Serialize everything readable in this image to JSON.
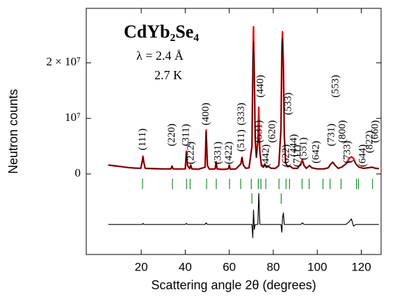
{
  "chart_data": {
    "type": "line",
    "title": "CdYb₂Se₄",
    "subtitle": "λ = 2.4 Å",
    "temperature": "2.7 K",
    "xlabel": "Scattering angle 2θ (degrees)",
    "ylabel": "Neutron counts",
    "xlim": [
      -5,
      129
    ],
    "xticks": [
      20,
      40,
      60,
      80,
      100,
      120
    ],
    "ylim": [
      -14500000,
      29800000
    ],
    "yticks": [
      0,
      {
        "value": 10000000,
        "label": "10⁷"
      },
      {
        "value": 20000000,
        "label": "2 × 10⁷"
      }
    ],
    "x": [
      5,
      8,
      11,
      14,
      17,
      19.8,
      20.4,
      20.8,
      21.2,
      21.8,
      25,
      30,
      33.5,
      34,
      34.5,
      37,
      40,
      40.5,
      41,
      42,
      42.5,
      43,
      46,
      49,
      49.5,
      50.1,
      51,
      53.6,
      54,
      54.5,
      57,
      59.6,
      60,
      60.5,
      63,
      65.3,
      65.8,
      66.4,
      67.5,
      69,
      70.3,
      70.7,
      71,
      71.4,
      71.8,
      72.3,
      73,
      73.4,
      73.9,
      74.6,
      75.5,
      76.2,
      76.8,
      78,
      79,
      81,
      82.5,
      83.5,
      83.9,
      84.2,
      84.6,
      85,
      85.6,
      86.5,
      87.5,
      89,
      91,
      92.5,
      93.2,
      94,
      95,
      96.5,
      97.5,
      100,
      103,
      105,
      106,
      107,
      108,
      109.5,
      111,
      113,
      114.5,
      115.5,
      116.5,
      117.5,
      119,
      121,
      123,
      125,
      126.5,
      128
    ],
    "series": [
      {
        "color": "#e8161b",
        "values": [
          1600000.0,
          1450000.0,
          1300000.0,
          1150000.0,
          1050000.0,
          1000000.0,
          2200000.0,
          3200000.0,
          2000000.0,
          1000000.0,
          950000.0,
          900000.0,
          900000.0,
          1400000.0,
          900000.0,
          880000.0,
          900000.0,
          4100000.0,
          1500000.0,
          950000.0,
          1600000.0,
          900000.0,
          850000.0,
          1200000.0,
          7900000.0,
          1500000.0,
          850000.0,
          900000.0,
          2200000.0,
          900000.0,
          820000.0,
          900000.0,
          1600000.0,
          850000.0,
          900000.0,
          1800000.0,
          3000000.0,
          1600000.0,
          1000000.0,
          1100000.0,
          5000000.0,
          18000000.0,
          26500000.0,
          18000000.0,
          6000000.0,
          3000000.0,
          6000000.0,
          12000000.0,
          4000000.0,
          1500000.0,
          1200000.0,
          1800000.0,
          1200000.0,
          1300000.0,
          1000000.0,
          1000000.0,
          1500000.0,
          8000000.0,
          22000000.0,
          25600000.0,
          20000000.0,
          7000000.0,
          2000000.0,
          1300000.0,
          1400000.0,
          1000000.0,
          1000000.0,
          1800000.0,
          2600000.0,
          1500000.0,
          1000000.0,
          1500000.0,
          1100000.0,
          900000.0,
          900000.0,
          1100000.0,
          1700000.0,
          2100000.0,
          1600000.0,
          1000000.0,
          1200000.0,
          1800000.0,
          2800000.0,
          3100000.0,
          2800000.0,
          1800000.0,
          1200000.0,
          1000000.0,
          1100000.0,
          1200000.0,
          1000000.0,
          950000.0
        ]
      },
      {
        "color": "#000000",
        "values": [
          1600000.0,
          1450000.0,
          1300000.0,
          1150000.0,
          1050000.0,
          1000000.0,
          2200000.0,
          3000000.0,
          2000000.0,
          1000000.0,
          950000.0,
          900000.0,
          900000.0,
          1400000.0,
          900000.0,
          880000.0,
          900000.0,
          3900000.0,
          1500000.0,
          950000.0,
          1600000.0,
          900000.0,
          850000.0,
          1200000.0,
          7600000.0,
          1500000.0,
          850000.0,
          900000.0,
          2200000.0,
          900000.0,
          820000.0,
          900000.0,
          1600000.0,
          850000.0,
          900000.0,
          1800000.0,
          3000000.0,
          1600000.0,
          1000000.0,
          1100000.0,
          5000000.0,
          20400000.0,
          23900000.0,
          18900000.0,
          6000000.0,
          3000000.0,
          6000000.0,
          6400000.0,
          4000000.0,
          1500000.0,
          1200000.0,
          1800000.0,
          1200000.0,
          1300000.0,
          1000000.0,
          1000000.0,
          1500000.0,
          8000000.0,
          23400000.0,
          24500000.0,
          17900000.0,
          7000000.0,
          2000000.0,
          1300000.0,
          1400000.0,
          1000000.0,
          1000000.0,
          1800000.0,
          2300000.0,
          1500000.0,
          1000000.0,
          1500000.0,
          1100000.0,
          900000.0,
          900000.0,
          1100000.0,
          1700000.0,
          2100000.0,
          1600000.0,
          1000000.0,
          1200000.0,
          1800000.0,
          2300000.0,
          2100000.0,
          2500000.0,
          1800000.0,
          1200000.0,
          1000000.0,
          1100000.0,
          1200000.0,
          1000000.0,
          950000.0
        ]
      },
      {
        "color": "#000000",
        "values": [
          -9100000.0,
          -9100000.0,
          -9100000.0,
          -9100000.0,
          -9100000.0,
          -9100000.0,
          -9100000.0,
          -8900000.0,
          -9100000.0,
          -9100000.0,
          -9100000.0,
          -9100000.0,
          -9100000.0,
          -9100000.0,
          -9100000.0,
          -9100000.0,
          -9100000.0,
          -8900000.0,
          -9100000.0,
          -9100000.0,
          -9100000.0,
          -9100000.0,
          -9100000.0,
          -9100000.0,
          -8800000.0,
          -9100000.0,
          -9100000.0,
          -9100000.0,
          -9100000.0,
          -9100000.0,
          -9100000.0,
          -9100000.0,
          -9100000.0,
          -9100000.0,
          -9100000.0,
          -9100000.0,
          -9100000.0,
          -9100000.0,
          -9100000.0,
          -9100000.0,
          -9100000.0,
          -11500000.0,
          -6500000.0,
          -10000000.0,
          -9100000.0,
          -9100000.0,
          -9100000.0,
          -3500000.0,
          -9100000.0,
          -9100000.0,
          -9100000.0,
          -9100000.0,
          -9100000.0,
          -9100000.0,
          -9100000.0,
          -9100000.0,
          -9100000.0,
          -9100000.0,
          -10500000.0,
          -8000000.0,
          -7000000.0,
          -9100000.0,
          -9100000.0,
          -9100000.0,
          -9100000.0,
          -9100000.0,
          -9100000.0,
          -9100000.0,
          -8800000.0,
          -9100000.0,
          -9100000.0,
          -9100000.0,
          -9100000.0,
          -9100000.0,
          -9100000.0,
          -9100000.0,
          -9100000.0,
          -9100000.0,
          -9100000.0,
          -9100000.0,
          -9100000.0,
          -9100000.0,
          -8600000.0,
          -8100000.0,
          -9400000.0,
          -9100000.0,
          -9100000.0,
          -9100000.0,
          -9100000.0,
          -9100000.0,
          -9100000.0,
          -9100000.0
        ]
      }
    ],
    "reflections": [
      {
        "color": "#1a8a2a",
        "positions": [
          20.6,
          34.2,
          40.6,
          42.2,
          49.7,
          54.1,
          60.1,
          65.2,
          70,
          73.2,
          74.4,
          76.6,
          82.6,
          85.8,
          87.4,
          93.1,
          96.3,
          102.6,
          105.8,
          110.8,
          117.8,
          118.7,
          125.1
        ]
      },
      {
        "color": "#1a8a2a",
        "positions": [
          70.3,
          83.6
        ]
      }
    ],
    "annotations": [
      {
        "text": "(111)",
        "x": 20.8,
        "y": 4250000
      },
      {
        "text": "(220)",
        "x": 34,
        "y": 5000000
      },
      {
        "text": "(311)",
        "x": 40.5,
        "y": 5000000
      },
      {
        "text": "(222)",
        "x": 42.8,
        "y": 1750000
      },
      {
        "text": "(400)",
        "x": 49.5,
        "y": 8750000
      },
      {
        "text": "(331)",
        "x": 55,
        "y": 1750000
      },
      {
        "text": "(422)",
        "x": 60,
        "y": 1750000
      },
      {
        "text": "(511)",
        "x": 65.7,
        "y": 4000000
      },
      {
        "text": "(333)",
        "x": 65.7,
        "y": 8750000
      },
      {
        "text": "(531)",
        "x": 73.7,
        "y": 5600000
      },
      {
        "text": "(440)",
        "x": 74.4,
        "y": 13750000
      },
      {
        "text": "(442)",
        "x": 76.9,
        "y": 1250000
      },
      {
        "text": "(620)",
        "x": 79.7,
        "y": 5600000
      },
      {
        "text": "(622)",
        "x": 86,
        "y": 1250000
      },
      {
        "text": "(533)",
        "x": 87,
        "y": 10600000
      },
      {
        "text": "(444)",
        "x": 89.5,
        "y": 3100000
      },
      {
        "text": "(711)",
        "x": 91.1,
        "y": 1250000
      },
      {
        "text": "(551)",
        "x": 94,
        "y": 2500000
      },
      {
        "text": "(642)",
        "x": 99.7,
        "y": 1900000
      },
      {
        "text": "(731)",
        "x": 106.6,
        "y": 5000000
      },
      {
        "text": "(553)",
        "x": 108.5,
        "y": 13750000
      },
      {
        "text": "(800)",
        "x": 111.7,
        "y": 5600000
      },
      {
        "text": "(733)",
        "x": 113.9,
        "y": 1900000
      },
      {
        "text": "(644)",
        "x": 120.8,
        "y": 1250000
      },
      {
        "text": "(822)",
        "x": 124,
        "y": 3750000
      },
      {
        "text": "(660)",
        "x": 126.5,
        "y": 5600000
      }
    ]
  }
}
